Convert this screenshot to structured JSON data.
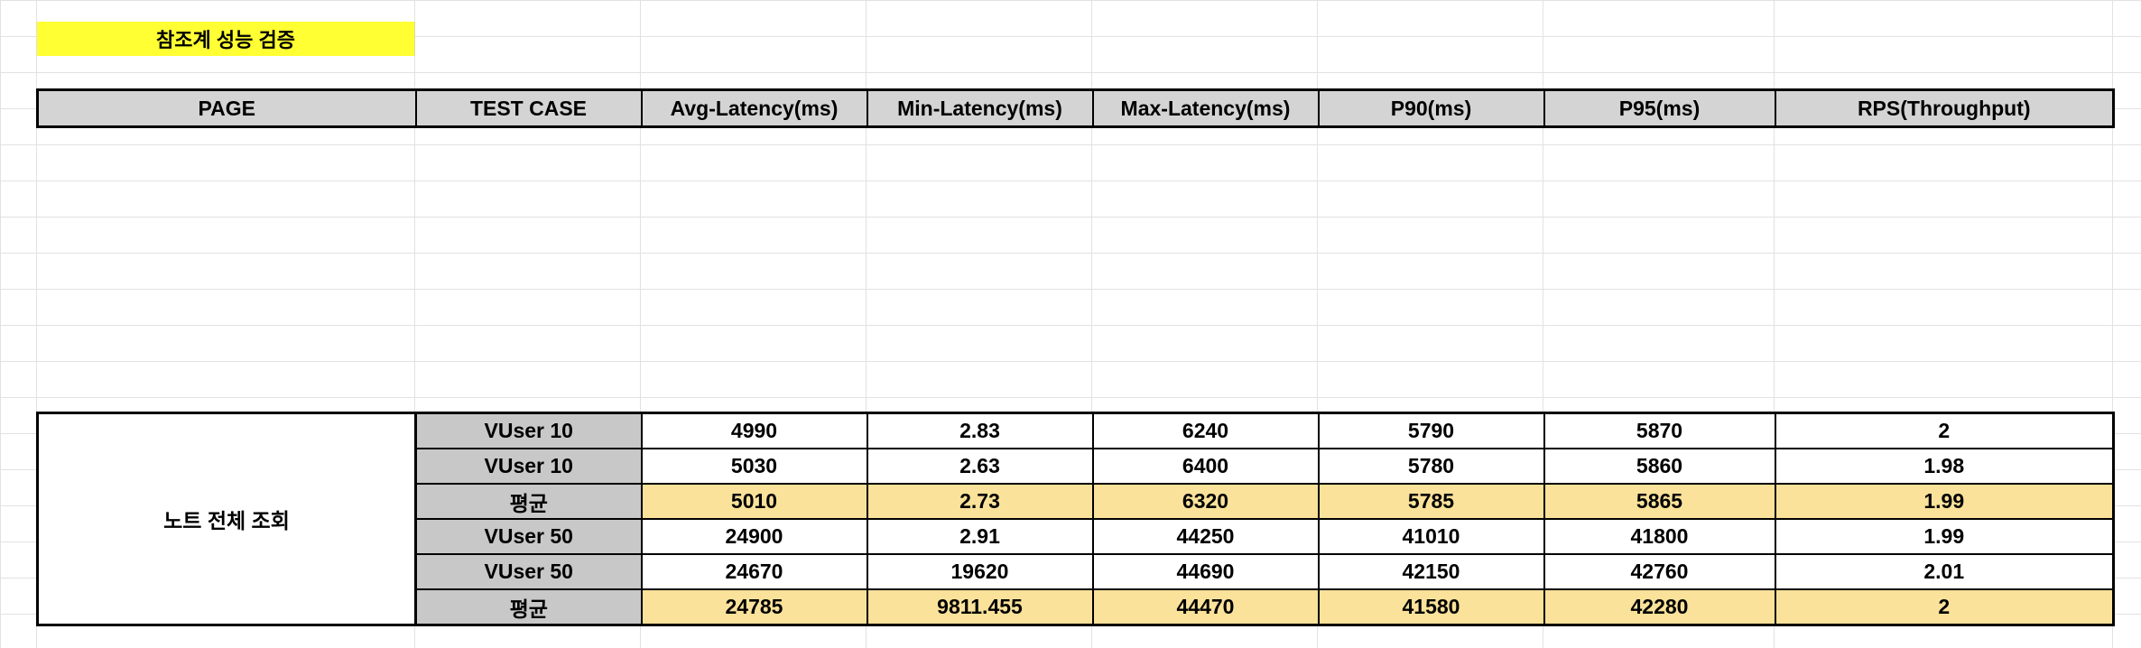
{
  "sheet": {
    "title": "참조계 성능 검증"
  },
  "header": {
    "columns": [
      "PAGE",
      "TEST CASE",
      "Avg-Latency(ms)",
      "Min-Latency(ms)",
      "Max-Latency(ms)",
      "P90(ms)",
      "P95(ms)",
      "RPS(Throughput)"
    ]
  },
  "results": {
    "page": "노트 전체 조회",
    "rows": [
      {
        "case": "VUser 10",
        "avg": "4990",
        "min": "2.83",
        "max": "6240",
        "p90": "5790",
        "p95": "5870",
        "rps": "2",
        "is_average": false
      },
      {
        "case": "VUser 10",
        "avg": "5030",
        "min": "2.63",
        "max": "6400",
        "p90": "5780",
        "p95": "5860",
        "rps": "1.98",
        "is_average": false
      },
      {
        "case": "평균",
        "avg": "5010",
        "min": "2.73",
        "max": "6320",
        "p90": "5785",
        "p95": "5865",
        "rps": "1.99",
        "is_average": true
      },
      {
        "case": "VUser 50",
        "avg": "24900",
        "min": "2.91",
        "max": "44250",
        "p90": "41010",
        "p95": "41800",
        "rps": "1.99",
        "is_average": false
      },
      {
        "case": "VUser 50",
        "avg": "24670",
        "min": "19620",
        "max": "44690",
        "p90": "42150",
        "p95": "42760",
        "rps": "2.01",
        "is_average": false
      },
      {
        "case": "평균",
        "avg": "24785",
        "min": "9811.455",
        "max": "44470",
        "p90": "41580",
        "p95": "42280",
        "rps": "2",
        "is_average": true
      }
    ]
  },
  "colors": {
    "title_highlight": "#ffff33",
    "header_fill": "#d4d4d4",
    "case_fill": "#c8c8c8",
    "average_fill": "#fbe29a"
  }
}
